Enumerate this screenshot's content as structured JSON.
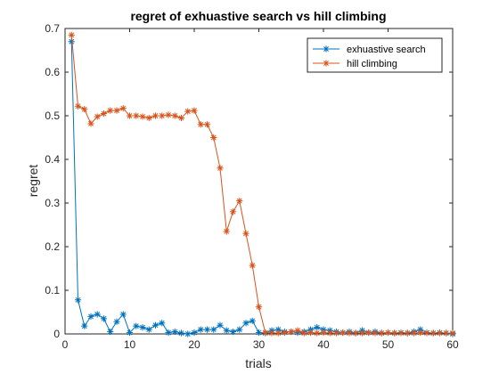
{
  "chart_data": {
    "type": "line",
    "title": "regret of exhuastive search vs hill climbing",
    "xlabel": "trials",
    "ylabel": "regret",
    "xlim": [
      0,
      60
    ],
    "ylim": [
      0,
      0.7
    ],
    "xticks": [
      0,
      10,
      20,
      30,
      40,
      50,
      60
    ],
    "yticks": [
      0,
      0.1,
      0.2,
      0.3,
      0.4,
      0.5,
      0.6,
      0.7
    ],
    "x_tick_labels": [
      "0",
      "10",
      "20",
      "30",
      "40",
      "50",
      "60"
    ],
    "y_tick_labels": [
      "0",
      "0.1",
      "0.2",
      "0.3",
      "0.4",
      "0.5",
      "0.6",
      "0.7"
    ],
    "grid": false,
    "legend_position": "top-right",
    "x": [
      1,
      2,
      3,
      4,
      5,
      6,
      7,
      8,
      9,
      10,
      11,
      12,
      13,
      14,
      15,
      16,
      17,
      18,
      19,
      20,
      21,
      22,
      23,
      24,
      25,
      26,
      27,
      28,
      29,
      30,
      31,
      32,
      33,
      34,
      35,
      36,
      37,
      38,
      39,
      40,
      41,
      42,
      43,
      44,
      45,
      46,
      47,
      48,
      49,
      50,
      51,
      52,
      53,
      54,
      55,
      56,
      57,
      58,
      59,
      60
    ],
    "series": [
      {
        "name": "exhuastive search",
        "color": "#0072bd",
        "marker": "asterisk",
        "values": [
          0.67,
          0.078,
          0.018,
          0.04,
          0.045,
          0.035,
          0.005,
          0.028,
          0.045,
          0.003,
          0.018,
          0.015,
          0.01,
          0.02,
          0.025,
          0.003,
          0.005,
          0.002,
          0.0,
          0.003,
          0.01,
          0.01,
          0.01,
          0.02,
          0.008,
          0.005,
          0.01,
          0.025,
          0.03,
          0.003,
          0.002,
          0.008,
          0.01,
          0.005,
          0.005,
          0.003,
          0.005,
          0.01,
          0.015,
          0.01,
          0.008,
          0.005,
          0.003,
          0.005,
          0.002,
          0.008,
          0.003,
          0.005,
          0.002,
          0.003,
          0.002,
          0.003,
          0.002,
          0.005,
          0.01,
          0.003,
          0.002,
          0.003,
          0.002,
          0.0
        ]
      },
      {
        "name": "hill climbing",
        "color": "#d95319",
        "marker": "asterisk",
        "values": [
          0.685,
          0.522,
          0.515,
          0.482,
          0.498,
          0.505,
          0.512,
          0.512,
          0.517,
          0.5,
          0.5,
          0.498,
          0.495,
          0.5,
          0.5,
          0.502,
          0.5,
          0.495,
          0.51,
          0.512,
          0.48,
          0.48,
          0.45,
          0.38,
          0.235,
          0.28,
          0.305,
          0.23,
          0.157,
          0.062,
          0.003,
          0.002,
          0.002,
          0.003,
          0.005,
          0.008,
          0.002,
          0.003,
          0.002,
          0.003,
          0.002,
          0.002,
          0.003,
          0.002,
          0.002,
          0.002,
          0.003,
          0.002,
          0.002,
          0.003,
          0.002,
          0.002,
          0.002,
          0.002,
          0.003,
          0.002,
          0.002,
          0.002,
          0.002,
          0.002
        ]
      }
    ]
  }
}
